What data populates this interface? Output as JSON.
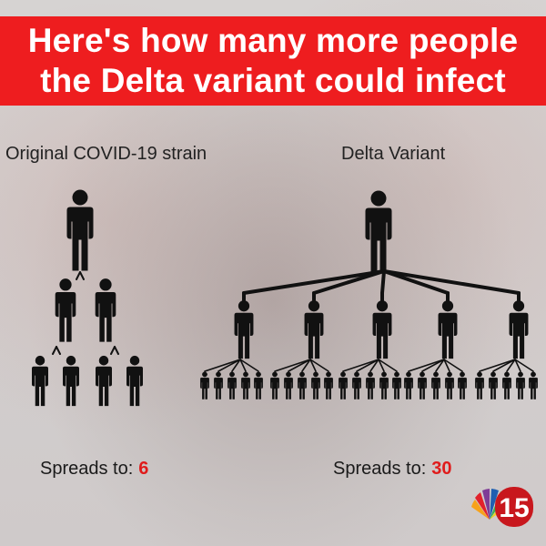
{
  "header": {
    "line1": "Here's how many more people",
    "line2": "the Delta variant could infect"
  },
  "left": {
    "title": "Original COVID-19 strain",
    "spread_label": "Spreads to:",
    "spread_value": "6"
  },
  "right": {
    "title": "Delta Variant",
    "spread_label": "Spreads to:",
    "spread_value": "30"
  },
  "logo": {
    "text": "15"
  },
  "colors": {
    "banner": "#ee1d1f",
    "accent_number": "#e01b1b",
    "figure": "#111111"
  }
}
